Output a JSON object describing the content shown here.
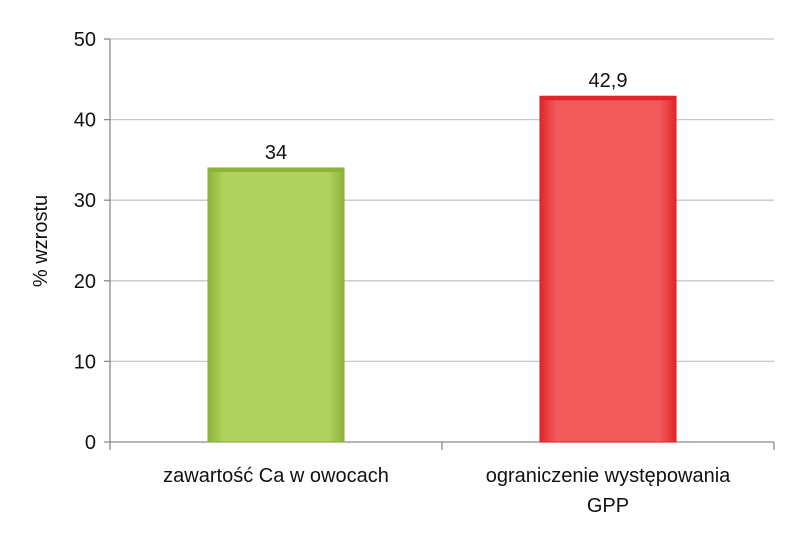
{
  "chart_data": {
    "type": "bar",
    "categories": [
      [
        "zawartość Ca w owocach"
      ],
      [
        "ograniczenie występowania",
        "GPP"
      ]
    ],
    "values": [
      34,
      42.9
    ],
    "data_labels": [
      "34",
      "42,9"
    ],
    "bar_colors": [
      "#8cb33a",
      "#e0262a"
    ],
    "bar_highlight_colors": [
      "#b2d25f",
      "#f2595a"
    ],
    "xlabel": "",
    "ylabel": "% wzrostu",
    "ylim": [
      0,
      50
    ],
    "yticks": [
      0,
      10,
      20,
      30,
      40,
      50
    ],
    "ytick_labels": [
      "0",
      "10",
      "20",
      "30",
      "40",
      "50"
    ],
    "grid": true,
    "grid_color": "#c8c8c8",
    "legend": "none"
  }
}
